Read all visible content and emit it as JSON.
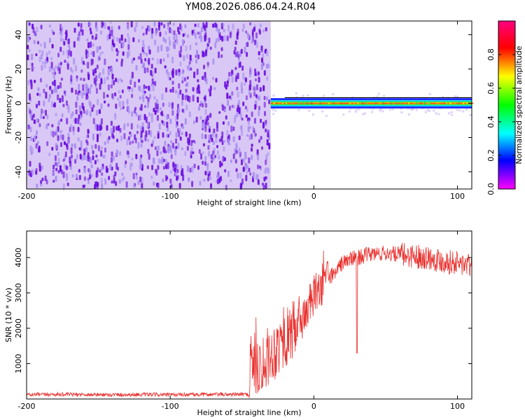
{
  "title": "YM08.2026.086.04.24.R04",
  "colors": {
    "snr_line": "#e8322f",
    "spec_background": "#ffffff",
    "noise_dark": "#6a0fe0",
    "noise_light": "#d9c8f5"
  },
  "chart_data": [
    {
      "type": "heatmap",
      "name": "spectrogram",
      "xlabel": "Height of straight line (km)",
      "ylabel": "Frequency (Hz)",
      "xlim": [
        -200,
        110
      ],
      "ylim": [
        -50,
        48
      ],
      "xticks": [
        -200,
        -100,
        0,
        100
      ],
      "yticks": [
        -40,
        -20,
        0,
        20,
        40
      ],
      "grid": false,
      "colorbar": {
        "label": "Normalized spectral amplitude",
        "range": [
          0,
          1
        ],
        "ticks": [
          0,
          0.2,
          0.4,
          0.6,
          0.8
        ],
        "colormap": "hsv-rainbow (magenta-blue-cyan-green-yellow-red)"
      },
      "regions": [
        {
          "kind": "broadband noise",
          "x_range": [
            -200,
            -30
          ],
          "freq_range": [
            -50,
            48
          ],
          "amplitude": "low (0.0-0.15)"
        },
        {
          "kind": "narrowband tone",
          "x_range": [
            -30,
            110
          ],
          "freq_center": 0,
          "freq_halfwidth": 3,
          "amplitude": "high, peaks ~1.0 near 0 Hz"
        }
      ]
    },
    {
      "type": "line",
      "name": "snr",
      "xlabel": "Height of straight line (km)",
      "ylabel": "SNR (10 * v/v)",
      "xlim": [
        -200,
        110
      ],
      "ylim": [
        0,
        4750
      ],
      "xticks": [
        -200,
        -100,
        0,
        100
      ],
      "yticks": [
        1000,
        2000,
        3000,
        4000
      ],
      "grid": false,
      "series": [
        {
          "x": [
            -200,
            -180,
            -160,
            -140,
            -120,
            -100,
            -80,
            -60,
            -45,
            -44,
            -40,
            -35,
            -30,
            -25,
            -20,
            -15,
            -10,
            -5,
            0,
            5,
            10,
            15,
            20,
            25,
            30,
            35,
            40,
            50,
            60,
            70,
            80,
            90,
            100,
            110
          ],
          "y": [
            120,
            130,
            125,
            120,
            125,
            120,
            125,
            130,
            130,
            1300,
            900,
            1100,
            1250,
            1500,
            1700,
            1900,
            2100,
            2500,
            2900,
            3200,
            3400,
            3600,
            3850,
            3950,
            4000,
            4050,
            4100,
            4120,
            4080,
            4050,
            4000,
            3900,
            3850,
            3750
          ]
        }
      ],
      "annotations": [
        {
          "kind": "dropout",
          "x": 30,
          "y_min": 1300
        }
      ]
    }
  ]
}
